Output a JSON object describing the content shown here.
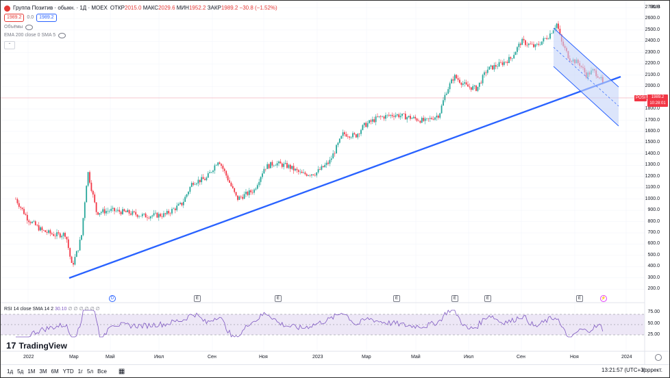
{
  "header": {
    "symbol_badge_text": "",
    "title": "Группа Позитив · обыкн. · 1Д · MOEX",
    "ohlc": [
      {
        "k": "ОТКР",
        "v": "2015.0"
      },
      {
        "k": "МАКС",
        "v": "2029.6"
      },
      {
        "k": "МИН",
        "v": "1952.2"
      },
      {
        "k": "ЗАКР",
        "v": "1989.2"
      },
      {
        "k": "",
        "v": "−30.8 (−1.52%)"
      }
    ],
    "bid": "1989.2",
    "spread": "0.0",
    "ask": "1989.2",
    "volume_label": "Объёмы",
    "ema_label": "EMA 200 close 0 SMA 5",
    "currency": "RUB"
  },
  "price_axis": [
    "2700.0",
    "2600.0",
    "2500.0",
    "2400.0",
    "2300.0",
    "2200.0",
    "2100.0",
    "2000.0",
    "1900.0",
    "1800.0",
    "1700.0",
    "1600.0",
    "1500.0",
    "1400.0",
    "1300.0",
    "1200.0",
    "1100.0",
    "1000.0",
    "900.0",
    "800.0",
    "700.0",
    "600.0",
    "500.0",
    "400.0",
    "300.0",
    "200.0"
  ],
  "last_price_tag": {
    "symbol": "POSI",
    "price": "1989.2",
    "countdown": "10:28:01"
  },
  "rsi": {
    "label": "RSI 14 close SMA 14 2",
    "value": "30.10",
    "dots": "∅ ∅ ∅ ∅ ∅ ∅",
    "axis": [
      "75.00",
      "50.00",
      "25.00"
    ]
  },
  "time_axis": [
    {
      "label": "2022"
    },
    {
      "label": "Мар"
    },
    {
      "label": "Май"
    },
    {
      "label": "Июл"
    },
    {
      "label": "Сен"
    },
    {
      "label": "Ноя"
    },
    {
      "label": "2023"
    },
    {
      "label": "Мар"
    },
    {
      "label": "Май"
    },
    {
      "label": "Июл"
    },
    {
      "label": "Сен"
    },
    {
      "label": "Ноя"
    },
    {
      "label": "2024"
    }
  ],
  "events": [
    "D",
    "E",
    "E",
    "E",
    "E",
    "E",
    "E",
    "⚡"
  ],
  "logo": "TradingView",
  "toolbar": {
    "timeframes": [
      "1д",
      "5д",
      "1М",
      "3М",
      "6М",
      "YTD",
      "1г",
      "5л",
      "Все"
    ],
    "clock": "13:21:57 (UTC+3)",
    "correction": "коррект."
  },
  "colors": {
    "up": "#26a69a",
    "down": "#f23645",
    "trend": "#2962ff",
    "rsi": "#7e57c2",
    "channel_fill": "#c5d3f8"
  }
}
